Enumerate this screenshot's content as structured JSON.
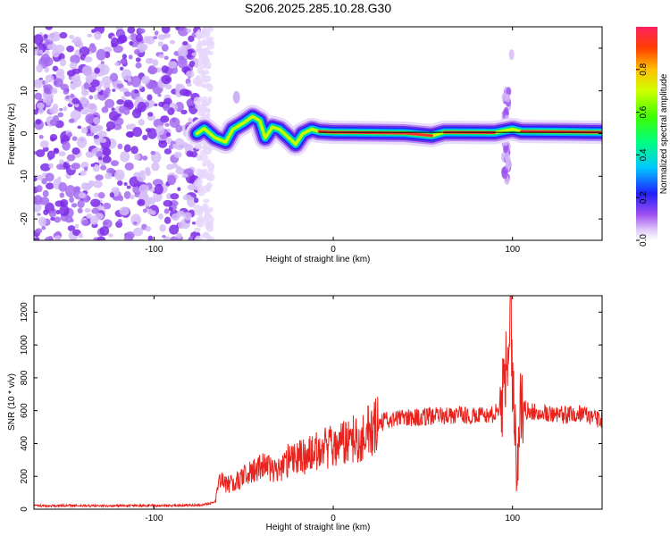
{
  "title": "S206.2025.285.10.28.G30",
  "chart_data": [
    {
      "type": "heatmap",
      "xlabel": "Height of straight line (km)",
      "ylabel": "Frequency (Hz)",
      "xlim": [
        -167,
        150
      ],
      "ylim": [
        -25,
        25
      ],
      "x_ticks": [
        -100,
        0,
        100
      ],
      "y_ticks": [
        -20,
        -10,
        0,
        10,
        20
      ],
      "ridge": [
        {
          "x": -76,
          "y": 0
        },
        {
          "x": -72,
          "y": 1.2
        },
        {
          "x": -66,
          "y": -1
        },
        {
          "x": -60,
          "y": -2
        },
        {
          "x": -56,
          "y": 1
        },
        {
          "x": -50,
          "y": 2.5
        },
        {
          "x": -45,
          "y": 4
        },
        {
          "x": -41,
          "y": 3
        },
        {
          "x": -38,
          "y": -1
        },
        {
          "x": -34,
          "y": 1.5
        },
        {
          "x": -30,
          "y": 1
        },
        {
          "x": -26,
          "y": -0.5
        },
        {
          "x": -21,
          "y": -2.5
        },
        {
          "x": -17,
          "y": 0
        },
        {
          "x": -12,
          "y": 1
        },
        {
          "x": -8,
          "y": 0.5
        },
        {
          "x": 0,
          "y": 0.3
        },
        {
          "x": 20,
          "y": 0.2
        },
        {
          "x": 40,
          "y": 0.1
        },
        {
          "x": 55,
          "y": -0.5
        },
        {
          "x": 62,
          "y": 0.3
        },
        {
          "x": 90,
          "y": 0.2
        },
        {
          "x": 95,
          "y": 0.6
        },
        {
          "x": 100,
          "y": 1
        },
        {
          "x": 105,
          "y": 0.5
        },
        {
          "x": 150,
          "y": 0.3
        }
      ],
      "colorbar": {
        "label": "Normalized spectral amplitude",
        "range": [
          0,
          1
        ],
        "ticks": [
          0.0,
          0.2,
          0.4,
          0.6,
          0.8
        ]
      }
    },
    {
      "type": "line",
      "xlabel": "Height of straight line (km)",
      "ylabel": "SNR (10 * v/v)",
      "xlim": [
        -167,
        150
      ],
      "ylim": [
        0,
        1300
      ],
      "x_ticks": [
        -100,
        0,
        100
      ],
      "y_ticks": [
        0,
        200,
        400,
        600,
        800,
        1000,
        1200
      ],
      "series": [
        {
          "name": "SNR",
          "color": "#e8221c",
          "x": [
            -167,
            -150,
            -130,
            -110,
            -90,
            -75,
            -66,
            -63,
            -60,
            -55,
            -50,
            -45,
            -40,
            -35,
            -30,
            -25,
            -20,
            -15,
            -10,
            -5,
            0,
            5,
            10,
            15,
            20,
            25,
            30,
            40,
            50,
            60,
            70,
            80,
            88,
            92,
            95,
            97,
            98,
            99,
            100,
            101,
            102,
            103,
            105,
            108,
            110,
            120,
            130,
            140,
            145,
            150
          ],
          "values": [
            20,
            22,
            20,
            22,
            22,
            25,
            40,
            180,
            150,
            160,
            200,
            230,
            260,
            250,
            240,
            300,
            310,
            320,
            350,
            370,
            380,
            400,
            420,
            440,
            470,
            520,
            540,
            560,
            560,
            570,
            570,
            570,
            570,
            600,
            700,
            900,
            1150,
            1250,
            800,
            600,
            300,
            400,
            650,
            600,
            600,
            580,
            570,
            590,
            560,
            540
          ]
        }
      ]
    }
  ],
  "colors": {
    "signal": "#e8221c",
    "noise": "#7d2be8",
    "axis": "#000000"
  }
}
